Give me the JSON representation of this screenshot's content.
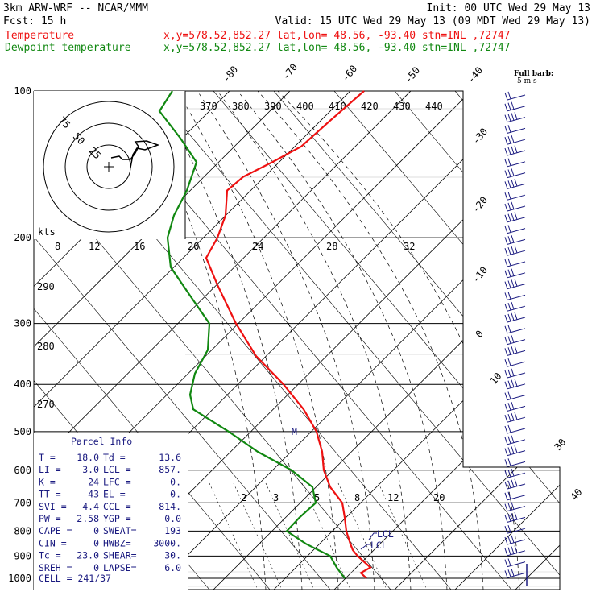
{
  "header": {
    "line1_left": "3km ARW-WRF -- NCAR/MMM",
    "line1_right": "Init: 00 UTC Wed 29 May 13",
    "line2_left": "Fcst:   15 h",
    "line2_right": "Valid: 15 UTC Wed 29 May 13 (09 MDT Wed 29 May 13)",
    "temp_label": "Temperature",
    "temp_info": "x,y=578.52,852.27   lat,lon= 48.56, -93.40   stn=INL ,72747",
    "dew_label": "Dewpoint temperature",
    "dew_info": "x,y=578.52,852.27   lat,lon= 48.56, -93.40   stn=INL ,72747"
  },
  "colors": {
    "temperature": "#ee1111",
    "dewpoint": "#118811",
    "text_blue": "#1a1a80",
    "isobar": "#000000"
  },
  "legend": {
    "barb_title": "Full barb:",
    "barb_value": "5 m s",
    "hodo_units": "kts"
  },
  "parcel": {
    "title": "Parcel Info",
    "rows": [
      [
        "T  =",
        "18.0",
        "Td =",
        "13.6"
      ],
      [
        "LI =",
        "3.0",
        "LCL =",
        "857."
      ],
      [
        "K  =",
        "24",
        "LFC =",
        "0."
      ],
      [
        "TT =",
        "43",
        "EL  =",
        "0."
      ],
      [
        "SVI =",
        "4.4",
        "CCL =",
        "814."
      ],
      [
        "PW =",
        "2.58",
        "YGP =",
        "0.0"
      ],
      [
        "CAPE =",
        "0",
        "SWEAT=",
        "193"
      ],
      [
        "CIN =",
        "0",
        "HWBZ=",
        "3000."
      ],
      [
        "Tc =",
        "23.0",
        "SHEAR=",
        "30."
      ],
      [
        "SREH =",
        "0",
        "LAPSE=",
        "6.0"
      ]
    ],
    "cell": "CELL = 241/37"
  },
  "lcl_labels": [
    "LCL",
    "LCL"
  ],
  "chart_data": {
    "type": "line",
    "title": "",
    "pressure_levels_hpa": [
      100,
      200,
      300,
      400,
      500,
      600,
      700,
      800,
      900,
      1000
    ],
    "pressure_tick_labels": [
      "100",
      "200",
      "300",
      "400",
      "500",
      "600",
      "700",
      "800",
      "900",
      "1000"
    ],
    "isotherm_labels_top": [
      "-80",
      "-70",
      "-60",
      "-50",
      "-40"
    ],
    "isotherm_labels_right": [
      "-30",
      "-20",
      "-10",
      "0",
      "10"
    ],
    "isotherm_labels_edge": [
      "30",
      "40"
    ],
    "theta_labels": [
      "370",
      "380",
      "390",
      "400",
      "410",
      "420",
      "430",
      "440"
    ],
    "mixing_ratio_labels": [
      "2",
      "3",
      "5",
      "8",
      "12",
      "20"
    ],
    "moist_adiabat_labels": [
      "12",
      "16",
      "20",
      "24",
      "28",
      "32"
    ],
    "dry_adiabat_labels_left": [
      "8",
      "290",
      "280",
      "270"
    ],
    "hodograph_ring_labels": [
      "75",
      "50",
      "25"
    ],
    "series": [
      {
        "name": "Temperature",
        "points": [
          {
            "p": 1000,
            "x": 455
          },
          {
            "p": 975,
            "x": 448
          },
          {
            "p": 950,
            "x": 460
          },
          {
            "p": 925,
            "x": 452
          },
          {
            "p": 900,
            "x": 444
          },
          {
            "p": 875,
            "x": 438
          },
          {
            "p": 850,
            "x": 435
          },
          {
            "p": 800,
            "x": 430
          },
          {
            "p": 750,
            "x": 428
          },
          {
            "p": 700,
            "x": 425
          },
          {
            "p": 650,
            "x": 410
          },
          {
            "p": 600,
            "x": 402
          },
          {
            "p": 550,
            "x": 400
          },
          {
            "p": 500,
            "x": 393
          },
          {
            "p": 450,
            "x": 377
          },
          {
            "p": 400,
            "x": 352
          },
          {
            "p": 350,
            "x": 318
          },
          {
            "p": 300,
            "x": 293
          },
          {
            "p": 250,
            "x": 270
          },
          {
            "p": 220,
            "x": 256
          },
          {
            "p": 200,
            "x": 270
          },
          {
            "p": 180,
            "x": 280
          },
          {
            "p": 160,
            "x": 282
          },
          {
            "p": 150,
            "x": 302
          },
          {
            "p": 140,
            "x": 338
          },
          {
            "p": 130,
            "x": 374
          },
          {
            "p": 115,
            "x": 410
          },
          {
            "p": 100,
            "x": 452
          }
        ]
      },
      {
        "name": "Dewpoint temperature",
        "points": [
          {
            "p": 1000,
            "x": 428
          },
          {
            "p": 950,
            "x": 418
          },
          {
            "p": 900,
            "x": 410
          },
          {
            "p": 850,
            "x": 380
          },
          {
            "p": 800,
            "x": 356
          },
          {
            "p": 750,
            "x": 372
          },
          {
            "p": 700,
            "x": 392
          },
          {
            "p": 650,
            "x": 388
          },
          {
            "p": 600,
            "x": 362
          },
          {
            "p": 550,
            "x": 320
          },
          {
            "p": 500,
            "x": 284
          },
          {
            "p": 450,
            "x": 240
          },
          {
            "p": 420,
            "x": 236
          },
          {
            "p": 380,
            "x": 242
          },
          {
            "p": 340,
            "x": 258
          },
          {
            "p": 300,
            "x": 260
          },
          {
            "p": 260,
            "x": 234
          },
          {
            "p": 230,
            "x": 212
          },
          {
            "p": 200,
            "x": 208
          },
          {
            "p": 180,
            "x": 216
          },
          {
            "p": 160,
            "x": 232
          },
          {
            "p": 140,
            "x": 244
          },
          {
            "p": 125,
            "x": 224
          },
          {
            "p": 110,
            "x": 198
          },
          {
            "p": 100,
            "x": 214
          }
        ]
      }
    ]
  }
}
